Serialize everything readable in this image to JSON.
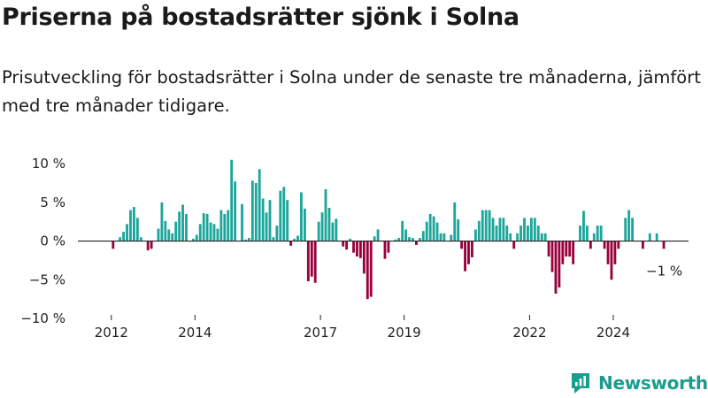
{
  "title": "Priserna på bostadsrätter sjönk i Solna",
  "subtitle": "Prisutveckling för bostadsrätter i Solna under de senaste tre månaderna, jämfört med tre månader tidigare.",
  "brand": {
    "name": "Newsworthy"
  },
  "colors": {
    "positive": "#1aa69b",
    "negative": "#99003d",
    "text": "#222222",
    "brand": "#1a9c8f"
  },
  "chart_data": {
    "type": "bar",
    "title": "Priserna på bostadsrätter sjönk i Solna",
    "xlabel": "",
    "ylabel": "",
    "ylim": [
      -10,
      11.5
    ],
    "x_range_years": [
      2011.2,
      2025.8
    ],
    "y_ticks": [
      10,
      5,
      0,
      -5,
      -10
    ],
    "y_tick_labels": [
      "10 %",
      "5 %",
      "0 %",
      "−5 %",
      "−10 %"
    ],
    "x_ticks": [
      2012,
      2014,
      2017,
      2019,
      2022,
      2024
    ],
    "x_tick_labels": [
      "2012",
      "2014",
      "2017",
      "2019",
      "2022",
      "2024"
    ],
    "end_label": "−1 %",
    "grid": false,
    "start": "2011-11",
    "frequency": "monthly",
    "values": [
      0,
      0,
      -1,
      0,
      0.5,
      1.2,
      2.2,
      4,
      4.4,
      3,
      0.5,
      0,
      -1.2,
      -1,
      0,
      1.6,
      5,
      2.6,
      1.5,
      1,
      2.5,
      3.8,
      4.7,
      3.5,
      0,
      0.3,
      0.8,
      2.2,
      3.6,
      3.5,
      2.4,
      2.2,
      1.6,
      4,
      3.5,
      4,
      10.5,
      7.7,
      0,
      4.8,
      0.2,
      0.4,
      7.8,
      7.5,
      9.3,
      5.5,
      3.7,
      5.3,
      0.5,
      2,
      6.5,
      7,
      5.3,
      -0.6,
      0.3,
      0.7,
      6.3,
      4.2,
      -5.2,
      -4.6,
      -5.4,
      2.5,
      3.7,
      6.7,
      4.3,
      2.4,
      2.9,
      0,
      -0.7,
      -1.1,
      0.3,
      -1.5,
      -2,
      -2.2,
      -4.2,
      -7.5,
      -7.2,
      0.6,
      1.5,
      0,
      -2.3,
      -1.5,
      0,
      0.2,
      0.4,
      2.6,
      1.5,
      0.5,
      0.4,
      -0.5,
      0.4,
      1.3,
      2.5,
      3.5,
      3.2,
      2.4,
      1,
      1,
      0,
      0.8,
      5,
      2.8,
      -1,
      -3.9,
      -3,
      -2.1,
      1.5,
      2.6,
      4,
      4,
      4,
      3,
      2,
      3,
      3,
      2,
      1,
      -1,
      1,
      2,
      3,
      2,
      3,
      3,
      2,
      1,
      1,
      -2,
      -4,
      -6.8,
      -6,
      -3,
      -2,
      -2,
      -3,
      0,
      2,
      3.9,
      2,
      -1,
      1,
      2,
      2,
      -1,
      -3,
      -5,
      -3,
      -1,
      0,
      3,
      4,
      3,
      0,
      0,
      -1,
      0,
      1,
      0,
      1,
      0,
      -1
    ]
  }
}
